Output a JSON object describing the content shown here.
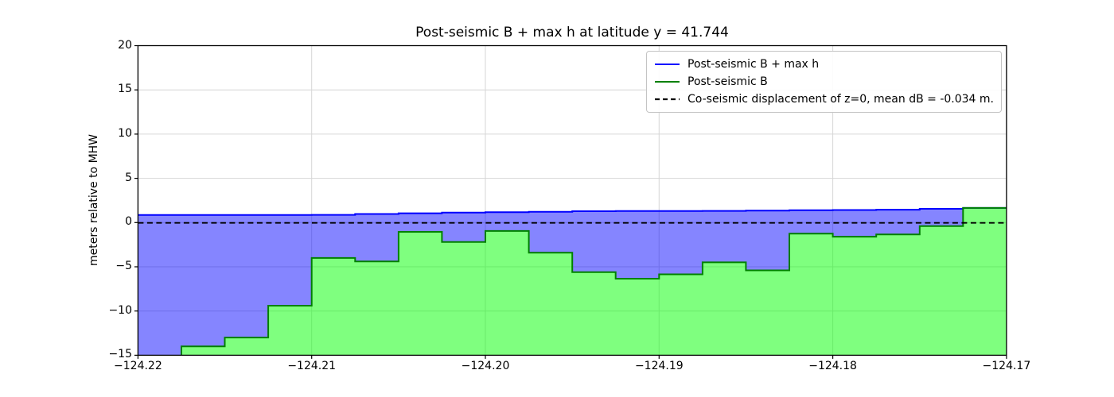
{
  "chart_data": {
    "type": "area",
    "title": "Post-seismic B + max h at latitude y = 41.744",
    "xlabel": "",
    "ylabel": "meters relative to MHW",
    "xlim": [
      -124.22,
      -124.17
    ],
    "ylim": [
      -15,
      20
    ],
    "grid": true,
    "legend_position": "upper right",
    "x_tick_values": [
      -124.22,
      -124.21,
      -124.2,
      -124.19,
      -124.18,
      -124.17
    ],
    "x_tick_labels": [
      "−124.22",
      "−124.21",
      "−124.20",
      "−124.19",
      "−124.18",
      "−124.17"
    ],
    "y_tick_values": [
      -15,
      -10,
      -5,
      0,
      5,
      10,
      15,
      20
    ],
    "y_tick_labels": [
      "−15",
      "−10",
      "−5",
      "0",
      "5",
      "10",
      "15",
      "20"
    ],
    "bin_edges": [
      -124.22,
      -124.2175,
      -124.215,
      -124.2125,
      -124.21,
      -124.2075,
      -124.205,
      -124.2025,
      -124.2,
      -124.1975,
      -124.195,
      -124.1925,
      -124.19,
      -124.1875,
      -124.185,
      -124.1825,
      -124.18,
      -124.1775,
      -124.175,
      -124.1725,
      -124.17
    ],
    "series": [
      {
        "name": "Post-seismic B + max h",
        "line_color": "#0000ff",
        "fill_color": "rgba(0,0,255,0.48)",
        "values": [
          0.85,
          0.85,
          0.85,
          0.85,
          0.87,
          0.97,
          1.05,
          1.12,
          1.18,
          1.22,
          1.28,
          1.3,
          1.3,
          1.32,
          1.35,
          1.4,
          1.42,
          1.45,
          1.55,
          1.65
        ]
      },
      {
        "name": "Post-seismic B",
        "line_color": "#008000",
        "fill_color": "rgba(0,255,0,0.5)",
        "values": [
          -15.6,
          -14.0,
          -13.0,
          -9.4,
          -4.0,
          -4.4,
          -1.05,
          -2.2,
          -0.95,
          -3.4,
          -5.6,
          -6.35,
          -5.85,
          -4.5,
          -5.4,
          -1.25,
          -1.6,
          -1.35,
          -0.4,
          1.65
        ]
      }
    ],
    "baseline": {
      "y": -0.034,
      "label": "Co-seismic displacement of z=0, mean dB = -0.034 m.",
      "color": "#000000",
      "style": "dashed"
    },
    "legend": [
      {
        "label": "Post-seismic B + max h",
        "color": "#0000ff",
        "style": "solid"
      },
      {
        "label": "Post-seismic B",
        "color": "#008000",
        "style": "solid"
      },
      {
        "label": "Co-seismic displacement of z=0, mean dB = -0.034 m.",
        "color": "#000000",
        "style": "dashed"
      }
    ]
  }
}
